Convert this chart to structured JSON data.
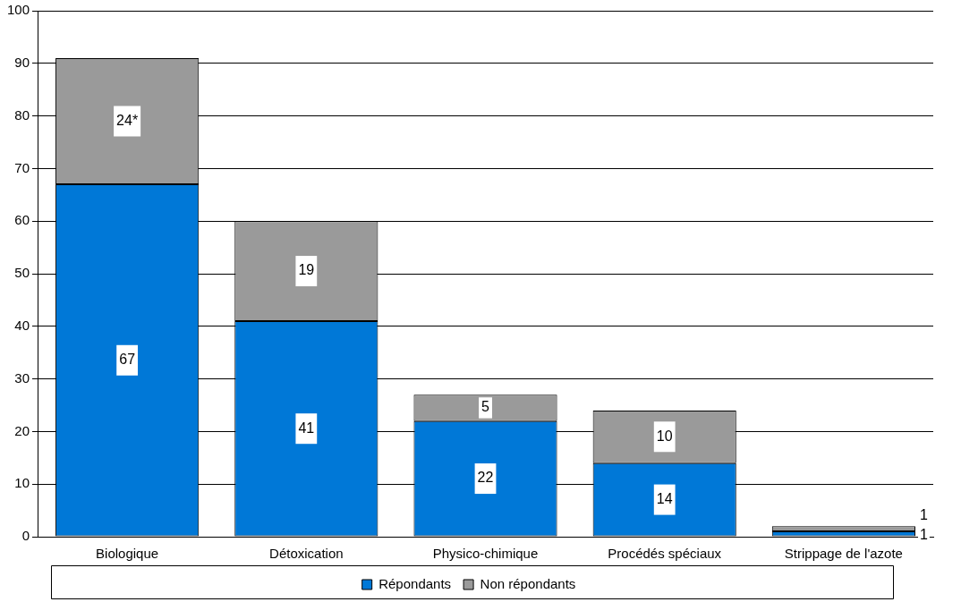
{
  "chart_data": {
    "type": "bar",
    "stacked": true,
    "categories": [
      "Biologique",
      "Détoxication",
      "Physico-chimique",
      "Procédés spéciaux",
      "Strippage de l'azote"
    ],
    "series": [
      {
        "name": "Répondants",
        "color": "#0078d7",
        "values": [
          67,
          41,
          22,
          14,
          1
        ],
        "value_labels": [
          "67",
          "41",
          "22",
          "14",
          "1"
        ]
      },
      {
        "name": "Non répondants",
        "color": "#9a9a9a",
        "values": [
          24,
          19,
          5,
          10,
          1
        ],
        "value_labels": [
          "24*",
          "19",
          "5",
          "10",
          "1"
        ]
      }
    ],
    "ylim": [
      0,
      100
    ],
    "yticks": [
      0,
      10,
      20,
      30,
      40,
      50,
      60,
      70,
      80,
      90,
      100
    ],
    "grid": "y",
    "legend": "bottom"
  }
}
